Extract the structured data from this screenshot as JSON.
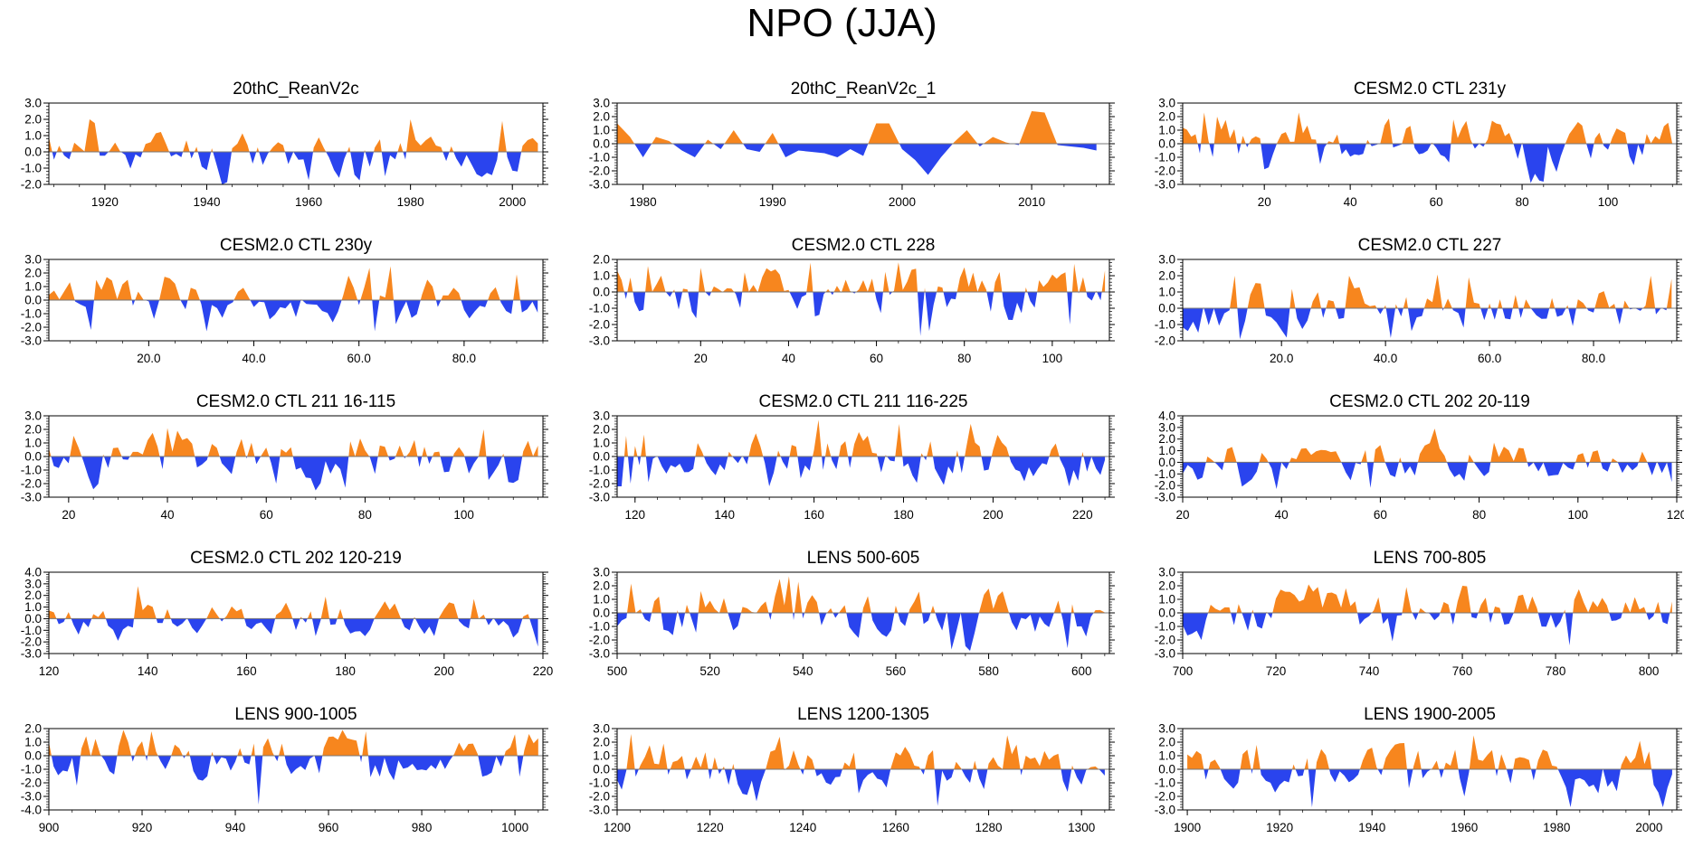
{
  "title": "NPO (JJA)",
  "colors": {
    "positive": "#f7861e",
    "negative": "#2a44ee",
    "frame": "#000000"
  },
  "chart_data": [
    {
      "type": "area",
      "title": "20thC_ReanV2c",
      "xlim": [
        1909,
        2006
      ],
      "ylim": [
        -2.0,
        3.0
      ],
      "yticks": [
        "3.0",
        "2.0",
        "1.0",
        "0.0",
        "-1.0",
        "-2.0"
      ],
      "xticks": [
        1920,
        1940,
        1960,
        1980,
        2000
      ],
      "start": 1909,
      "seed": 11,
      "amp": 0.7,
      "min": -2.0,
      "max": 2.1,
      "peaks": [
        [
          1917,
          2.0
        ],
        [
          1943,
          -2.0
        ],
        [
          1980,
          2.0
        ],
        [
          1998,
          1.9
        ],
        [
          1975,
          -1.5
        ],
        [
          1969,
          -1.4
        ]
      ]
    },
    {
      "type": "area",
      "title": "20thC_ReanV2c_1",
      "xlim": [
        1978,
        2016
      ],
      "ylim": [
        -3.0,
        3.0
      ],
      "yticks": [
        "3.0",
        "2.0",
        "1.0",
        "0.0",
        "-1.0",
        "-2.0",
        "-3.0"
      ],
      "xticks": [
        1980,
        1990,
        2000,
        2010
      ],
      "values": [
        1.5,
        0.5,
        -1.0,
        0.5,
        0.2,
        -0.5,
        -1.0,
        0.3,
        -0.4,
        1.0,
        -0.4,
        -0.6,
        0.8,
        -1.0,
        -0.5,
        -0.6,
        -0.7,
        -1.0,
        -0.4,
        -0.9,
        1.5,
        1.5,
        -0.4,
        -1.2,
        -2.3,
        -1.0,
        0.1,
        1.0,
        -0.2,
        0.5,
        0.1,
        -0.1,
        2.4,
        2.3,
        -0.1,
        -0.2,
        -0.3,
        -0.5
      ],
      "start": 1978
    },
    {
      "type": "area",
      "title": "CESM2.0 CTL 231y",
      "xlim": [
        1,
        116
      ],
      "ylim": [
        -3.0,
        3.0
      ],
      "yticks": [
        "3.0",
        "2.0",
        "1.0",
        "0.0",
        "-1.0",
        "-2.0",
        "-3.0"
      ],
      "xticks": [
        20,
        40,
        60,
        80,
        100
      ],
      "start": 1,
      "seed": 23,
      "amp": 0.85,
      "min": -2.9,
      "max": 2.4,
      "peaks": [
        [
          6,
          2.3
        ],
        [
          9,
          2.0
        ],
        [
          28,
          2.3
        ],
        [
          85,
          -2.8
        ],
        [
          73,
          1.7
        ],
        [
          33,
          -1.5
        ]
      ]
    },
    {
      "type": "area",
      "title": "CESM2.0 CTL 230y",
      "xlim": [
        1,
        95
      ],
      "ylim": [
        -3.0,
        3.0
      ],
      "yticks": [
        "3.0",
        "2.0",
        "1.0",
        "0.0",
        "-1.0",
        "-2.0",
        "-3.0"
      ],
      "xticks": [
        "20.0",
        "40.0",
        "60.0",
        "80.0"
      ],
      "start": 1,
      "seed": 37,
      "amp": 0.85,
      "min": -2.3,
      "max": 2.5,
      "peaks": [
        [
          66,
          2.5
        ],
        [
          58,
          1.8
        ],
        [
          9,
          -2.2
        ],
        [
          63,
          -2.3
        ],
        [
          24,
          1.6
        ],
        [
          90,
          1.9
        ]
      ]
    },
    {
      "type": "area",
      "title": "CESM2.0 CTL 228",
      "xlim": [
        1,
        113
      ],
      "ylim": [
        -3.0,
        2.0
      ],
      "yticks": [
        "2.0",
        "1.0",
        "0.0",
        "-1.0",
        "-2.0",
        "-3.0"
      ],
      "xticks": [
        20,
        40,
        60,
        80,
        100
      ],
      "start": 1,
      "seed": 41,
      "amp": 0.85,
      "min": -2.8,
      "max": 1.9,
      "peaks": [
        [
          45,
          1.8
        ],
        [
          70,
          -2.7
        ],
        [
          72,
          -2.4
        ],
        [
          104,
          -2.0
        ],
        [
          8,
          1.6
        ]
      ]
    },
    {
      "type": "area",
      "title": "CESM2.0 CTL 227",
      "xlim": [
        1,
        96
      ],
      "ylim": [
        -2.0,
        3.0
      ],
      "yticks": [
        "3.0",
        "2.0",
        "1.0",
        "0.0",
        "-1.0",
        "-2.0"
      ],
      "xticks": [
        "20.0",
        "40.0",
        "60.0",
        "80.0"
      ],
      "start": 1,
      "seed": 53,
      "amp": 0.75,
      "min": -1.9,
      "max": 2.1,
      "peaks": [
        [
          11,
          2.0
        ],
        [
          33,
          2.0
        ],
        [
          91,
          2.0
        ],
        [
          21,
          -1.8
        ],
        [
          56,
          1.9
        ],
        [
          4,
          -1.5
        ]
      ]
    },
    {
      "type": "area",
      "title": "CESM2.0 CTL 211 16-115",
      "xlim": [
        16,
        116
      ],
      "ylim": [
        -3.0,
        3.0
      ],
      "yticks": [
        "3.0",
        "2.0",
        "1.0",
        "0.0",
        "-1.0",
        "-2.0",
        "-3.0"
      ],
      "xticks": [
        20,
        40,
        60,
        80,
        100
      ],
      "start": 16,
      "seed": 67,
      "amp": 0.85,
      "min": -2.5,
      "max": 2.2,
      "peaks": [
        [
          40,
          2.1
        ],
        [
          42,
          1.9
        ],
        [
          104,
          2.0
        ],
        [
          76,
          -2.3
        ],
        [
          62,
          -2.0
        ]
      ]
    },
    {
      "type": "area",
      "title": "CESM2.0 CTL 211 116-225",
      "xlim": [
        116,
        226
      ],
      "ylim": [
        -3.0,
        3.0
      ],
      "yticks": [
        "3.0",
        "2.0",
        "1.0",
        "0.0",
        "-1.0",
        "-2.0",
        "-3.0"
      ],
      "xticks": [
        120,
        140,
        160,
        180,
        200,
        220
      ],
      "start": 116,
      "seed": 71,
      "amp": 0.9,
      "min": -2.2,
      "max": 2.8,
      "peaks": [
        [
          161,
          2.7
        ],
        [
          179,
          2.4
        ],
        [
          119,
          -2.0
        ],
        [
          123,
          -1.9
        ],
        [
          170,
          1.8
        ]
      ]
    },
    {
      "type": "area",
      "title": "CESM2.0 CTL 202 20-119",
      "xlim": [
        20,
        120
      ],
      "ylim": [
        -3.0,
        4.0
      ],
      "yticks": [
        "4.0",
        "3.0",
        "2.0",
        "1.0",
        "0.0",
        "-1.0",
        "-2.0",
        "-3.0"
      ],
      "xticks": [
        20,
        40,
        60,
        80,
        100,
        120
      ],
      "start": 20,
      "seed": 83,
      "amp": 0.75,
      "min": -2.3,
      "max": 3.0,
      "peaks": [
        [
          71,
          2.9
        ],
        [
          58,
          -2.2
        ],
        [
          83,
          1.7
        ],
        [
          119,
          -1.7
        ],
        [
          23,
          -1.5
        ]
      ]
    },
    {
      "type": "area",
      "title": "CESM2.0 CTL 202 120-219",
      "xlim": [
        120,
        220
      ],
      "ylim": [
        -3.0,
        4.0
      ],
      "yticks": [
        "4.0",
        "3.0",
        "2.0",
        "1.0",
        "0.0",
        "-1.0",
        "-2.0",
        "-3.0"
      ],
      "xticks": [
        120,
        140,
        160,
        180,
        200,
        220
      ],
      "start": 120,
      "seed": 97,
      "amp": 0.75,
      "min": -2.5,
      "max": 2.9,
      "peaks": [
        [
          138,
          2.8
        ],
        [
          219,
          -2.4
        ],
        [
          134,
          -1.9
        ],
        [
          206,
          1.7
        ],
        [
          176,
          1.9
        ]
      ]
    },
    {
      "type": "area",
      "title": "LENS 500-605",
      "xlim": [
        500,
        606
      ],
      "ylim": [
        -3.0,
        3.0
      ],
      "yticks": [
        "3.0",
        "2.0",
        "1.0",
        "0.0",
        "-1.0",
        "-2.0",
        "-3.0"
      ],
      "xticks": [
        500,
        520,
        540,
        560,
        580,
        600
      ],
      "start": 500,
      "seed": 101,
      "amp": 0.85,
      "min": -2.8,
      "max": 2.8,
      "peaks": [
        [
          535,
          2.5
        ],
        [
          537,
          2.7
        ],
        [
          539,
          2.3
        ],
        [
          572,
          -2.7
        ],
        [
          597,
          -2.6
        ]
      ]
    },
    {
      "type": "area",
      "title": "LENS 700-805",
      "xlim": [
        700,
        806
      ],
      "ylim": [
        -3.0,
        3.0
      ],
      "yticks": [
        "3.0",
        "2.0",
        "1.0",
        "0.0",
        "-1.0",
        "-2.0",
        "-3.0"
      ],
      "xticks": [
        700,
        720,
        740,
        760,
        780,
        800
      ],
      "start": 700,
      "seed": 113,
      "amp": 0.85,
      "min": -2.5,
      "max": 2.1,
      "peaks": [
        [
          760,
          2.0
        ],
        [
          748,
          1.9
        ],
        [
          783,
          -2.4
        ],
        [
          704,
          -2.0
        ],
        [
          745,
          -2.1
        ]
      ]
    },
    {
      "type": "area",
      "title": "LENS 900-1005",
      "xlim": [
        900,
        1006
      ],
      "ylim": [
        -4.0,
        2.0
      ],
      "yticks": [
        "2.0",
        "1.0",
        "0.0",
        "-1.0",
        "-2.0",
        "-3.0",
        "-4.0"
      ],
      "xticks": [
        900,
        920,
        940,
        960,
        980,
        1000
      ],
      "start": 900,
      "seed": 127,
      "amp": 0.85,
      "min": -3.6,
      "max": 1.9,
      "peaks": [
        [
          945,
          -3.6
        ],
        [
          906,
          -2.2
        ],
        [
          968,
          1.8
        ],
        [
          922,
          1.8
        ],
        [
          1003,
          1.6
        ]
      ]
    },
    {
      "type": "area",
      "title": "LENS 1200-1305",
      "xlim": [
        1200,
        1306
      ],
      "ylim": [
        -3.0,
        3.0
      ],
      "yticks": [
        "3.0",
        "2.0",
        "1.0",
        "0.0",
        "-1.0",
        "-2.0",
        "-3.0"
      ],
      "xticks": [
        1200,
        1220,
        1240,
        1260,
        1280,
        1300
      ],
      "start": 1200,
      "seed": 131,
      "amp": 0.85,
      "min": -2.8,
      "max": 2.8,
      "peaks": [
        [
          1203,
          2.6
        ],
        [
          1235,
          2.4
        ],
        [
          1284,
          2.5
        ],
        [
          1269,
          -2.7
        ],
        [
          1201,
          -1.5
        ]
      ]
    },
    {
      "type": "area",
      "title": "LENS 1900-2005",
      "xlim": [
        1899,
        2006
      ],
      "ylim": [
        -3.0,
        3.0
      ],
      "yticks": [
        "3.0",
        "2.0",
        "1.0",
        "0.0",
        "-1.0",
        "-2.0",
        "-3.0"
      ],
      "xticks": [
        1900,
        1920,
        1940,
        1960,
        1980,
        2000
      ],
      "start": 1900,
      "seed": 139,
      "amp": 0.85,
      "min": -2.8,
      "max": 2.6,
      "peaks": [
        [
          1962,
          2.5
        ],
        [
          1927,
          -2.8
        ],
        [
          1915,
          1.8
        ],
        [
          1998,
          2.1
        ],
        [
          1960,
          -2.0
        ]
      ]
    }
  ]
}
